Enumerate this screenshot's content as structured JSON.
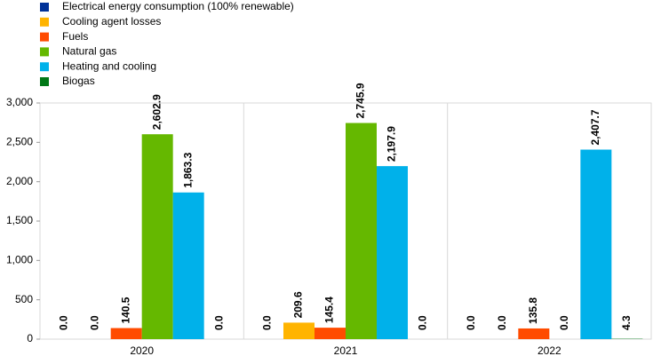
{
  "chart_data": {
    "type": "bar",
    "categories": [
      "2020",
      "2021",
      "2022"
    ],
    "series": [
      {
        "name": "Electrical energy consumption (100% renewable)",
        "color": "#003299",
        "values": [
          0,
          0,
          0
        ],
        "value_labels": [
          "0.0",
          "0.0",
          "0.0"
        ]
      },
      {
        "name": "Cooling agent losses",
        "color": "#ffb400",
        "values": [
          0,
          209.6,
          0
        ],
        "value_labels": [
          "0.0",
          "209.6",
          "0.0"
        ]
      },
      {
        "name": "Fuels",
        "color": "#ff4b00",
        "values": [
          140.5,
          145.4,
          135.8
        ],
        "value_labels": [
          "140.5",
          "145.4",
          "135.8"
        ]
      },
      {
        "name": "Natural gas",
        "color": "#65b800",
        "values": [
          2602.9,
          2745.9,
          0
        ],
        "value_labels": [
          "2,602.9",
          "2,745.9",
          "0.0"
        ]
      },
      {
        "name": "Heating and cooling",
        "color": "#00b1ea",
        "values": [
          1863.3,
          2197.9,
          2407.7
        ],
        "value_labels": [
          "1,863.3",
          "2,197.9",
          "2,407.7"
        ]
      },
      {
        "name": "Biogas",
        "color": "#007816",
        "values": [
          0,
          0,
          4.3
        ],
        "value_labels": [
          "0.0",
          "0.0",
          "4.3"
        ]
      }
    ],
    "ylim": [
      0,
      3000
    ],
    "yticks": [
      0,
      500,
      {
        "value": 1000,
        "label": "1,000"
      },
      {
        "value": 1500,
        "label": "1,500"
      },
      {
        "value": 2000,
        "label": "2,000"
      },
      {
        "value": 2500,
        "label": "2,500"
      },
      {
        "value": 3000,
        "label": "3,000"
      }
    ],
    "grid": false
  }
}
